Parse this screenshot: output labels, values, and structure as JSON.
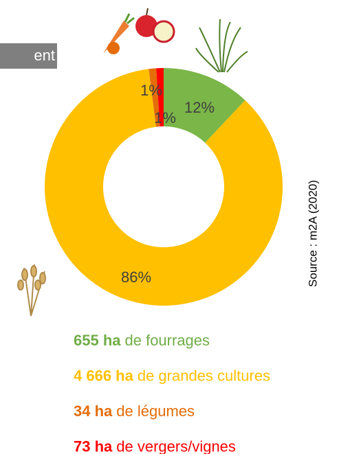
{
  "chart_data": {
    "type": "donut",
    "title": "ent",
    "source": "Source : m2A (2020)",
    "categories": [
      "de fourrages",
      "de grandes cultures",
      "de légumes",
      "de vergers/vignes"
    ],
    "amounts": [
      "655 ha",
      "4 666 ha",
      "34 ha",
      "73 ha"
    ],
    "values": [
      12,
      86,
      1,
      1
    ],
    "value_labels": [
      "12%",
      "86%",
      "1%",
      "1%"
    ],
    "colors": [
      "#7ab648",
      "#ffc000",
      "#e46c0a",
      "#ff0000"
    ],
    "text_colors": [
      "#70ad47",
      "#ffc000",
      "#e46c0a",
      "#ff0000"
    ]
  }
}
